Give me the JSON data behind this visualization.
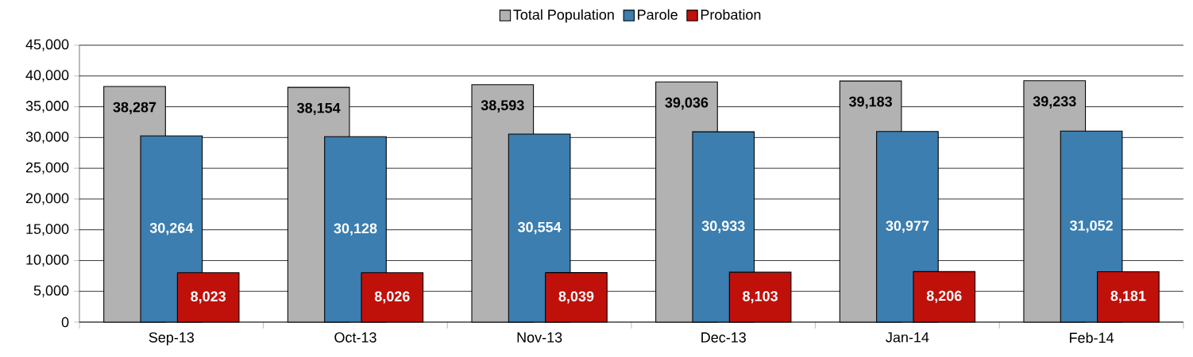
{
  "chart_data": {
    "type": "bar",
    "categories": [
      "Sep-13",
      "Oct-13",
      "Nov-13",
      "Dec-13",
      "Jan-14",
      "Feb-14"
    ],
    "series": [
      {
        "name": "Total Population",
        "color": "#b2b2b2",
        "values": [
          38287,
          38154,
          38593,
          39036,
          39183,
          39233
        ],
        "value_labels": [
          "38,287",
          "38,154",
          "38,593",
          "39,036",
          "39,183",
          "39,233"
        ]
      },
      {
        "name": "Parole",
        "color": "#3b7eaf",
        "values": [
          30264,
          30128,
          30554,
          30933,
          30977,
          31052
        ],
        "value_labels": [
          "30,264",
          "30,128",
          "30,554",
          "30,933",
          "30,977",
          "31,052"
        ]
      },
      {
        "name": "Probation",
        "color": "#c0100a",
        "values": [
          8023,
          8026,
          8039,
          8103,
          8206,
          8181
        ],
        "value_labels": [
          "8,023",
          "8,026",
          "8,039",
          "8,103",
          "8,206",
          "8,181"
        ]
      }
    ],
    "ylim": [
      0,
      45000
    ],
    "yticks": [
      {
        "value": 0,
        "label": "0"
      },
      {
        "value": 5000,
        "label": "5,000"
      },
      {
        "value": 10000,
        "label": "10,000"
      },
      {
        "value": 15000,
        "label": "15,000"
      },
      {
        "value": 20000,
        "label": "20,000"
      },
      {
        "value": 25000,
        "label": "25,000"
      },
      {
        "value": 30000,
        "label": "30,000"
      },
      {
        "value": 35000,
        "label": "35,000"
      },
      {
        "value": 40000,
        "label": "40,000"
      },
      {
        "value": 45000,
        "label": "45,000"
      }
    ],
    "grid": "y",
    "legend": "top"
  }
}
